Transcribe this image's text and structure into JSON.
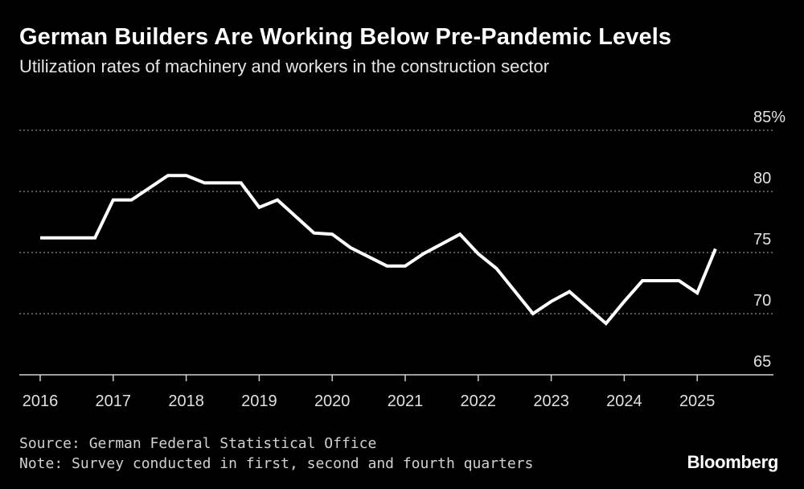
{
  "chart_data": {
    "type": "line",
    "title": "German Builders Are Working Below Pre-Pandemic Levels",
    "subtitle": "Utilization rates of machinery and workers in the construction sector",
    "ylim": [
      65,
      85
    ],
    "yticks": [
      {
        "value": 85,
        "label": "85%"
      },
      {
        "value": 80,
        "label": "80"
      },
      {
        "value": 75,
        "label": "75"
      },
      {
        "value": 70,
        "label": "70"
      },
      {
        "value": 65,
        "label": "65"
      }
    ],
    "xlim": [
      2016,
      2026
    ],
    "xticks": [
      "2016",
      "2017",
      "2018",
      "2019",
      "2020",
      "2021",
      "2022",
      "2023",
      "2024",
      "2025"
    ],
    "series": [
      {
        "name": "Utilization rate",
        "color": "#ffffff",
        "x": [
          2016.0,
          2016.25,
          2016.75,
          2017.0,
          2017.25,
          2017.75,
          2018.0,
          2018.25,
          2018.75,
          2019.0,
          2019.25,
          2019.75,
          2020.0,
          2020.25,
          2020.75,
          2021.0,
          2021.25,
          2021.75,
          2022.0,
          2022.25,
          2022.75,
          2023.0,
          2023.25,
          2023.75,
          2024.0,
          2024.25,
          2024.75,
          2025.0,
          2025.25
        ],
        "values": [
          76.2,
          76.2,
          76.2,
          79.3,
          79.3,
          81.3,
          81.3,
          80.7,
          80.7,
          78.7,
          79.3,
          76.6,
          76.5,
          75.4,
          73.9,
          73.9,
          74.9,
          76.5,
          74.9,
          73.7,
          70.0,
          71.0,
          71.8,
          69.2,
          71.0,
          72.7,
          72.7,
          71.7,
          75.3
        ]
      }
    ]
  },
  "footer": {
    "source": "Source: German Federal Statistical Office",
    "note": "Note: Survey conducted in first, second and fourth quarters",
    "logo": "Bloomberg"
  }
}
